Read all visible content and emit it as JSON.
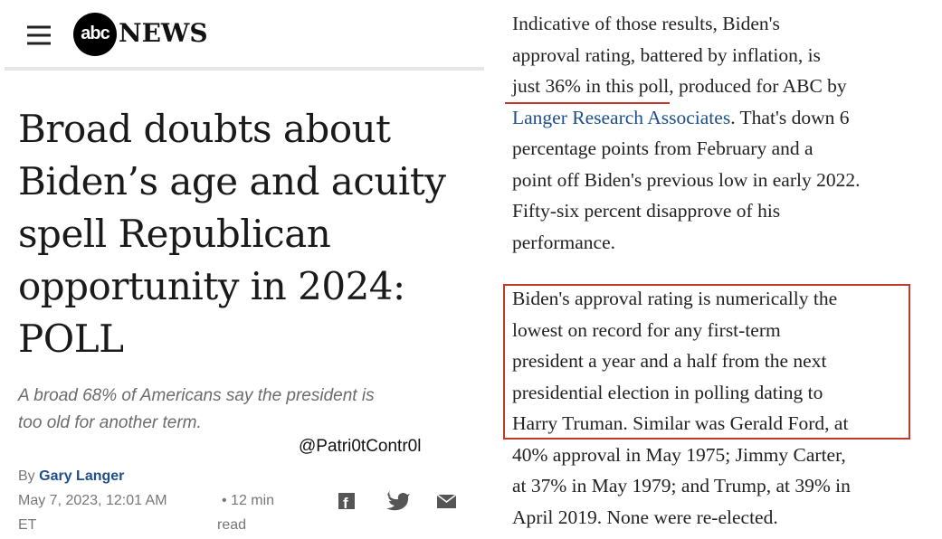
{
  "header": {
    "logo_mark": "abc",
    "logo_word": "NEWS"
  },
  "headline": {
    "lines": [
      "Broad doubts about",
      "Biden’s age and acuity",
      "spell Republican",
      "opportunity in 2024:",
      "POLL"
    ]
  },
  "subtitle": {
    "lines": [
      "A broad 68% of Americans say the president is",
      "too old for another term."
    ]
  },
  "watermark": "@Patri0tContr0l",
  "byline": {
    "prefix": "By",
    "author": "Gary Langer",
    "date_lines": [
      "May 7, 2023, 12:01 AM",
      "ET"
    ],
    "read_lines": [
      "• 12 min",
      "read"
    ]
  },
  "article": {
    "paragraph1": {
      "lines_before": [
        "Indicative of those results, Biden's",
        "approval rating, battered by inflation, is",
        "just 36% in this poll, produced for ABC by"
      ],
      "link": "Langer Research Associates",
      "link_tail": ". That's down 6",
      "lines_after": [
        "percentage points from February and a",
        "point off Biden's previous low in early 2022.",
        "Fifty-six percent disapprove of his",
        "performance."
      ]
    },
    "paragraph2": {
      "lines": [
        "Biden's approval rating is numerically the",
        "lowest on record for any first-term",
        "president a year and a half from the next",
        "presidential election in polling dating to",
        "Harry Truman. Similar was Gerald Ford, at",
        "40% approval in May 1975; Jimmy Carter,",
        "at 37% in May 1979; and Trump, at 39% in",
        "April 2019. None were re-elected."
      ]
    }
  }
}
